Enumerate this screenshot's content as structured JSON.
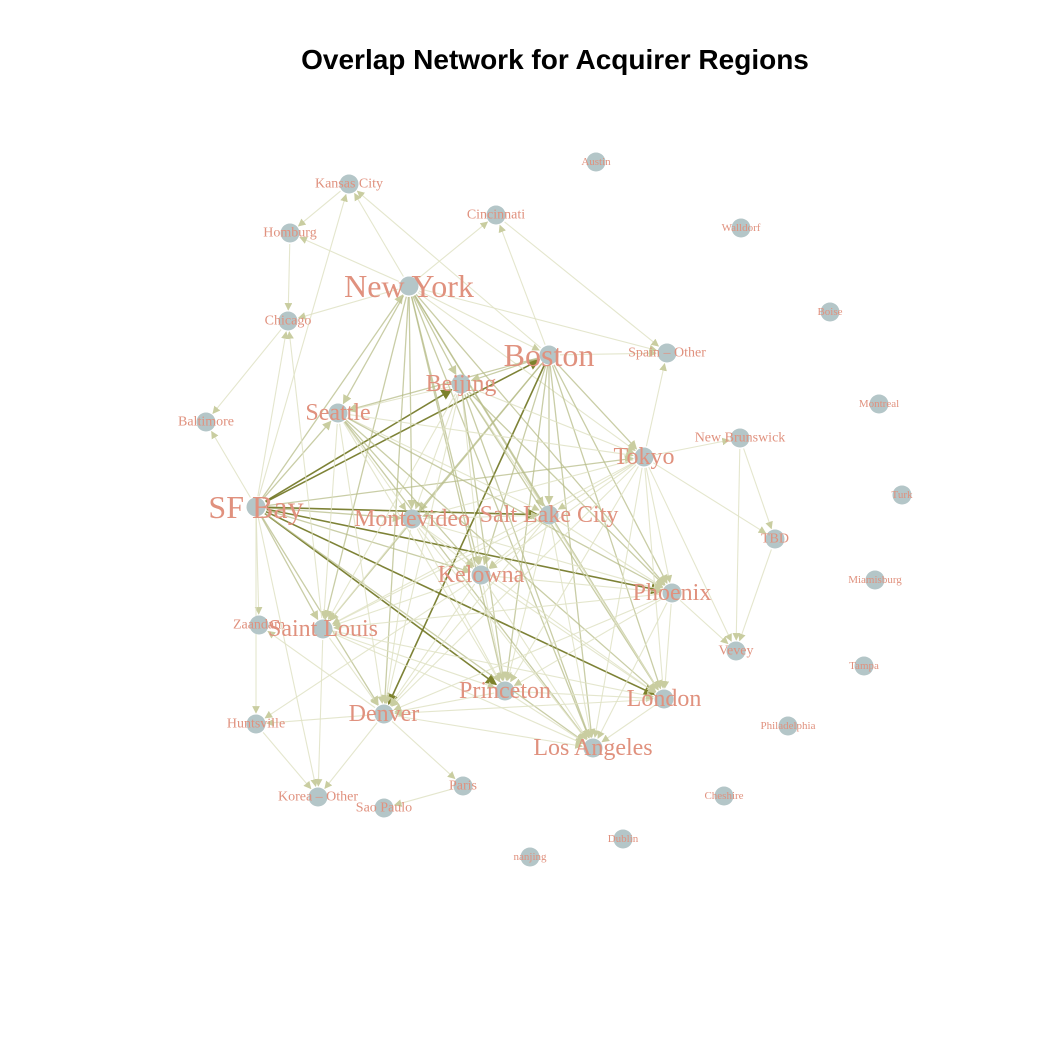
{
  "title": "Overlap Network for Acquirer Regions",
  "colors": {
    "node": "#b4c6c8",
    "label": "#e0917e",
    "edge_light": "#dfe2c4",
    "edge_mid": "#b7bc88",
    "edge_dark": "#6f7420",
    "background": "#ffffff"
  },
  "nodes": [
    {
      "id": "Austin",
      "label": "Austin",
      "weight": 0
    },
    {
      "id": "Kansas City",
      "label": "Kansas City",
      "weight": 1
    },
    {
      "id": "Cincinnati",
      "label": "Cincinnati",
      "weight": 1
    },
    {
      "id": "Walldorf",
      "label": "Walldorf",
      "weight": 0
    },
    {
      "id": "Homburg",
      "label": "Homburg",
      "weight": 1
    },
    {
      "id": "New York",
      "label": "New York",
      "weight": 3
    },
    {
      "id": "Boise",
      "label": "Boise",
      "weight": 0
    },
    {
      "id": "Chicago",
      "label": "Chicago",
      "weight": 1
    },
    {
      "id": "Spain - Other",
      "label": "Spain – Other",
      "weight": 1
    },
    {
      "id": "Boston",
      "label": "Boston",
      "weight": 3
    },
    {
      "id": "Beijing",
      "label": "Beijing",
      "weight": 2
    },
    {
      "id": "Montreal",
      "label": "Montreal",
      "weight": 0
    },
    {
      "id": "Seattle",
      "label": "Seattle",
      "weight": 2
    },
    {
      "id": "Baltimore",
      "label": "Baltimore",
      "weight": 1
    },
    {
      "id": "New Brunswick",
      "label": "New Brunswick",
      "weight": 1
    },
    {
      "id": "Tokyo",
      "label": "Tokyo",
      "weight": 2
    },
    {
      "id": "Turk",
      "label": "Turk",
      "weight": 0
    },
    {
      "id": "SF Bay",
      "label": "SF Bay",
      "weight": 4
    },
    {
      "id": "Montevideo",
      "label": "Montevideo",
      "weight": 2
    },
    {
      "id": "Salt Lake City",
      "label": "Salt Lake City",
      "weight": 2
    },
    {
      "id": "TBD",
      "label": "TBD",
      "weight": 1
    },
    {
      "id": "Miamisburg",
      "label": "Miamisburg",
      "weight": 0
    },
    {
      "id": "Kelowna",
      "label": "Kelowna",
      "weight": 2
    },
    {
      "id": "Phoenix",
      "label": "Phoenix",
      "weight": 2
    },
    {
      "id": "Zaandam",
      "label": "Zaandam",
      "weight": 1
    },
    {
      "id": "Saint Louis",
      "label": "Saint Louis",
      "weight": 2
    },
    {
      "id": "Vevey",
      "label": "Vevey",
      "weight": 1
    },
    {
      "id": "Tampa",
      "label": "Tampa",
      "weight": 0
    },
    {
      "id": "Princeton",
      "label": "Princeton",
      "weight": 2
    },
    {
      "id": "London",
      "label": "London",
      "weight": 2
    },
    {
      "id": "Denver",
      "label": "Denver",
      "weight": 2
    },
    {
      "id": "Huntsville",
      "label": "Huntsville",
      "weight": 1
    },
    {
      "id": "Philadelphia",
      "label": "Philadelphia",
      "weight": 0
    },
    {
      "id": "Los Angeles",
      "label": "Los Angeles",
      "weight": 2
    },
    {
      "id": "Paris",
      "label": "Paris",
      "weight": 1
    },
    {
      "id": "Korea - Other",
      "label": "Korea – Other",
      "weight": 1
    },
    {
      "id": "Cheshire",
      "label": "Cheshire",
      "weight": 0
    },
    {
      "id": "Sao Paulo",
      "label": "Sao Paulo",
      "weight": 1
    },
    {
      "id": "Dublin",
      "label": "Dublin",
      "weight": 0
    },
    {
      "id": "nanjing",
      "label": "nanjing",
      "weight": 0
    }
  ],
  "edges": [
    [
      "SF Bay",
      "New York",
      2
    ],
    [
      "SF Bay",
      "Boston",
      3
    ],
    [
      "SF Bay",
      "Beijing",
      3
    ],
    [
      "SF Bay",
      "Seattle",
      2
    ],
    [
      "SF Bay",
      "Tokyo",
      2
    ],
    [
      "SF Bay",
      "Montevideo",
      2
    ],
    [
      "SF Bay",
      "Salt Lake City",
      3
    ],
    [
      "SF Bay",
      "Kelowna",
      2
    ],
    [
      "SF Bay",
      "Phoenix",
      3
    ],
    [
      "SF Bay",
      "Saint Louis",
      2
    ],
    [
      "SF Bay",
      "Princeton",
      3
    ],
    [
      "SF Bay",
      "London",
      3
    ],
    [
      "SF Bay",
      "Denver",
      2
    ],
    [
      "SF Bay",
      "Los Angeles",
      2
    ],
    [
      "SF Bay",
      "Chicago",
      1
    ],
    [
      "SF Bay",
      "Baltimore",
      1
    ],
    [
      "SF Bay",
      "Zaandam",
      1
    ],
    [
      "SF Bay",
      "Huntsville",
      1
    ],
    [
      "SF Bay",
      "Korea - Other",
      1
    ],
    [
      "SF Bay",
      "Kansas City",
      1
    ],
    [
      "New York",
      "Boston",
      1
    ],
    [
      "New York",
      "Beijing",
      2
    ],
    [
      "New York",
      "Seattle",
      2
    ],
    [
      "New York",
      "Tokyo",
      1
    ],
    [
      "New York",
      "Montevideo",
      2
    ],
    [
      "New York",
      "Salt Lake City",
      2
    ],
    [
      "New York",
      "Kelowna",
      2
    ],
    [
      "New York",
      "Phoenix",
      2
    ],
    [
      "New York",
      "Saint Louis",
      2
    ],
    [
      "New York",
      "Princeton",
      2
    ],
    [
      "New York",
      "London",
      2
    ],
    [
      "New York",
      "Denver",
      2
    ],
    [
      "New York",
      "Los Angeles",
      2
    ],
    [
      "New York",
      "Kansas City",
      1
    ],
    [
      "New York",
      "Chicago",
      1
    ],
    [
      "New York",
      "Cincinnati",
      1
    ],
    [
      "New York",
      "Spain - Other",
      1
    ],
    [
      "New York",
      "Homburg",
      1
    ],
    [
      "Boston",
      "Beijing",
      2
    ],
    [
      "Boston",
      "Seattle",
      2
    ],
    [
      "Boston",
      "Tokyo",
      2
    ],
    [
      "Boston",
      "Montevideo",
      2
    ],
    [
      "Boston",
      "Salt Lake City",
      2
    ],
    [
      "Boston",
      "Kelowna",
      2
    ],
    [
      "Boston",
      "Phoenix",
      2
    ],
    [
      "Boston",
      "Saint Louis",
      2
    ],
    [
      "Boston",
      "Princeton",
      2
    ],
    [
      "Boston",
      "London",
      2
    ],
    [
      "Boston",
      "Denver",
      3
    ],
    [
      "Boston",
      "Los Angeles",
      2
    ],
    [
      "Boston",
      "Cincinnati",
      1
    ],
    [
      "Boston",
      "Spain - Other",
      1
    ],
    [
      "Boston",
      "Kansas City",
      1
    ],
    [
      "Beijing",
      "Seattle",
      1
    ],
    [
      "Beijing",
      "Tokyo",
      1
    ],
    [
      "Beijing",
      "Montevideo",
      1
    ],
    [
      "Beijing",
      "Salt Lake City",
      1
    ],
    [
      "Beijing",
      "Kelowna",
      1
    ],
    [
      "Beijing",
      "Phoenix",
      2
    ],
    [
      "Beijing",
      "Saint Louis",
      1
    ],
    [
      "Beijing",
      "Princeton",
      2
    ],
    [
      "Beijing",
      "London",
      2
    ],
    [
      "Beijing",
      "Denver",
      1
    ],
    [
      "Beijing",
      "Los Angeles",
      2
    ],
    [
      "Seattle",
      "Tokyo",
      1
    ],
    [
      "Seattle",
      "Montevideo",
      1
    ],
    [
      "Seattle",
      "Salt Lake City",
      1
    ],
    [
      "Seattle",
      "Kelowna",
      2
    ],
    [
      "Seattle",
      "Phoenix",
      2
    ],
    [
      "Seattle",
      "Saint Louis",
      1
    ],
    [
      "Seattle",
      "Princeton",
      1
    ],
    [
      "Seattle",
      "London",
      2
    ],
    [
      "Seattle",
      "Denver",
      1
    ],
    [
      "Seattle",
      "Los Angeles",
      2
    ],
    [
      "Tokyo",
      "Montevideo",
      1
    ],
    [
      "Tokyo",
      "Salt Lake City",
      1
    ],
    [
      "Tokyo",
      "Kelowna",
      1
    ],
    [
      "Tokyo",
      "Phoenix",
      1
    ],
    [
      "Tokyo",
      "Saint Louis",
      1
    ],
    [
      "Tokyo",
      "Princeton",
      1
    ],
    [
      "Tokyo",
      "London",
      1
    ],
    [
      "Tokyo",
      "Denver",
      1
    ],
    [
      "Tokyo",
      "Los Angeles",
      1
    ],
    [
      "Tokyo",
      "New Brunswick",
      1
    ],
    [
      "Tokyo",
      "TBD",
      1
    ],
    [
      "Tokyo",
      "Vevey",
      1
    ],
    [
      "Tokyo",
      "Spain - Other",
      1
    ],
    [
      "Montevideo",
      "Salt Lake City",
      1
    ],
    [
      "Montevideo",
      "Kelowna",
      1
    ],
    [
      "Montevideo",
      "Phoenix",
      1
    ],
    [
      "Montevideo",
      "Saint Louis",
      1
    ],
    [
      "Montevideo",
      "Princeton",
      1
    ],
    [
      "Montevideo",
      "London",
      1
    ],
    [
      "Montevideo",
      "Denver",
      1
    ],
    [
      "Montevideo",
      "Los Angeles",
      1
    ],
    [
      "Salt Lake City",
      "Kelowna",
      1
    ],
    [
      "Salt Lake City",
      "Phoenix",
      1
    ],
    [
      "Salt Lake City",
      "Saint Louis",
      1
    ],
    [
      "Salt Lake City",
      "Princeton",
      1
    ],
    [
      "Salt Lake City",
      "London",
      1
    ],
    [
      "Salt Lake City",
      "Denver",
      1
    ],
    [
      "Salt Lake City",
      "Los Angeles",
      1
    ],
    [
      "Kelowna",
      "Phoenix",
      1
    ],
    [
      "Kelowna",
      "Saint Louis",
      1
    ],
    [
      "Kelowna",
      "Princeton",
      1
    ],
    [
      "Kelowna",
      "London",
      1
    ],
    [
      "Kelowna",
      "Denver",
      1
    ],
    [
      "Kelowna",
      "Los Angeles",
      1
    ],
    [
      "Phoenix",
      "Saint Louis",
      1
    ],
    [
      "Phoenix",
      "Princeton",
      1
    ],
    [
      "Phoenix",
      "London",
      1
    ],
    [
      "Phoenix",
      "Denver",
      1
    ],
    [
      "Phoenix",
      "Los Angeles",
      1
    ],
    [
      "Phoenix",
      "Vevey",
      1
    ],
    [
      "Saint Louis",
      "Princeton",
      1
    ],
    [
      "Saint Louis",
      "London",
      1
    ],
    [
      "Saint Louis",
      "Denver",
      1
    ],
    [
      "Saint Louis",
      "Los Angeles",
      1
    ],
    [
      "Saint Louis",
      "Chicago",
      1
    ],
    [
      "Saint Louis",
      "Korea - Other",
      1
    ],
    [
      "Princeton",
      "London",
      1
    ],
    [
      "Princeton",
      "Denver",
      1
    ],
    [
      "Princeton",
      "Los Angeles",
      1
    ],
    [
      "London",
      "Denver",
      1
    ],
    [
      "London",
      "Los Angeles",
      1
    ],
    [
      "Denver",
      "Los Angeles",
      1
    ],
    [
      "Denver",
      "Paris",
      1
    ],
    [
      "Denver",
      "Huntsville",
      1
    ],
    [
      "Denver",
      "Korea - Other",
      1
    ],
    [
      "Denver",
      "Zaandam",
      1
    ],
    [
      "Huntsville",
      "Korea - Other",
      1
    ],
    [
      "Paris",
      "Sao Paulo",
      1
    ],
    [
      "Kansas City",
      "Homburg",
      1
    ],
    [
      "Homburg",
      "Chicago",
      1
    ],
    [
      "Chicago",
      "Baltimore",
      1
    ],
    [
      "New Brunswick",
      "Vevey",
      1
    ],
    [
      "TBD",
      "Vevey",
      1
    ],
    [
      "New Brunswick",
      "TBD",
      1
    ],
    [
      "Cincinnati",
      "Spain - Other",
      1
    ],
    [
      "Kelowna",
      "Huntsville",
      1
    ]
  ]
}
